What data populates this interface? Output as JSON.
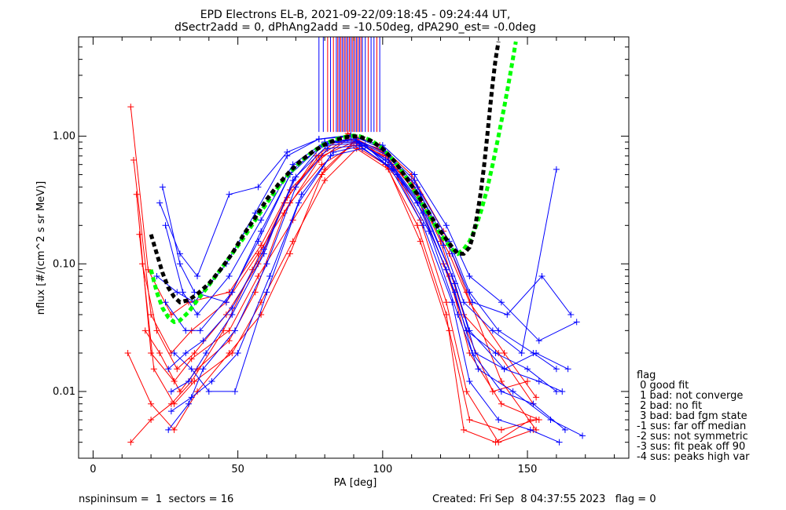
{
  "chart_data": {
    "type": "line",
    "title": "EPD Electrons EL-B, 2021-09-22/09:18:45 - 09:24:44 UT,",
    "subtitle": "dSectr2add = 0, dPhAng2add = -10.50deg, dPA290_est=  -0.0deg",
    "xlabel": "PA [deg]",
    "ylabel": "nflux [#/(cm^2 s sr MeV)]",
    "xlim": [
      -5,
      185
    ],
    "ylim": [
      0.003,
      6.0
    ],
    "yscale": "log",
    "x_ticks": [
      0,
      50,
      100,
      150
    ],
    "x_tick_labels": [
      "0",
      "50",
      "100",
      "150"
    ],
    "y_ticks": [
      0.01,
      0.1,
      1.0
    ],
    "y_tick_labels": [
      "0.01",
      "0.10",
      "1.00"
    ],
    "grid": false,
    "colors": {
      "red": "#ff0000",
      "blue": "#0000ff",
      "black": "#000000",
      "green": "#00ff00"
    },
    "series": [
      {
        "color": "red",
        "x": [
          13,
          19,
          27,
          33,
          47,
          58,
          68,
          79,
          90,
          101,
          112,
          123,
          130,
          142,
          153
        ],
        "y": [
          1.7,
          0.09,
          0.04,
          0.05,
          0.06,
          0.14,
          0.38,
          0.7,
          0.9,
          0.7,
          0.35,
          0.12,
          0.05,
          0.02,
          0.009
        ]
      },
      {
        "color": "red",
        "x": [
          14,
          20,
          27,
          34,
          46,
          57,
          68,
          79,
          90,
          101,
          112,
          123,
          130,
          141,
          154
        ],
        "y": [
          0.65,
          0.04,
          0.02,
          0.03,
          0.05,
          0.12,
          0.3,
          0.6,
          0.85,
          0.6,
          0.3,
          0.08,
          0.02,
          0.008,
          0.006
        ]
      },
      {
        "color": "red",
        "x": [
          15,
          20,
          28,
          34,
          47,
          57,
          69,
          80,
          91,
          102,
          113,
          122,
          129,
          140,
          152
        ],
        "y": [
          0.35,
          0.02,
          0.012,
          0.018,
          0.03,
          0.08,
          0.22,
          0.55,
          0.95,
          0.65,
          0.22,
          0.05,
          0.01,
          0.004,
          0.005
        ]
      },
      {
        "color": "red",
        "x": [
          16,
          21,
          28,
          35,
          48,
          58,
          69,
          80,
          91,
          102,
          113,
          123,
          130,
          141,
          153
        ],
        "y": [
          0.17,
          0.015,
          0.008,
          0.012,
          0.02,
          0.05,
          0.15,
          0.45,
          0.8,
          0.55,
          0.15,
          0.03,
          0.006,
          0.005,
          0.006
        ]
      },
      {
        "color": "red",
        "x": [
          12,
          20,
          28,
          36,
          47,
          58,
          68,
          79,
          90,
          101,
          112,
          122,
          128,
          139,
          151
        ],
        "y": [
          0.02,
          0.008,
          0.005,
          0.01,
          0.02,
          0.04,
          0.12,
          0.5,
          0.9,
          0.6,
          0.2,
          0.04,
          0.005,
          0.004,
          0.006
        ]
      },
      {
        "color": "red",
        "x": [
          17,
          22,
          29,
          35,
          46,
          57,
          67,
          78,
          89,
          100,
          111,
          121,
          129,
          138,
          150
        ],
        "y": [
          0.1,
          0.03,
          0.015,
          0.02,
          0.04,
          0.1,
          0.33,
          0.7,
          1.0,
          0.75,
          0.38,
          0.1,
          0.03,
          0.01,
          0.012
        ]
      },
      {
        "color": "red",
        "x": [
          18,
          23,
          30,
          36,
          47,
          56,
          66,
          78,
          88,
          99,
          110,
          120,
          128,
          140,
          152
        ],
        "y": [
          0.03,
          0.02,
          0.01,
          0.015,
          0.025,
          0.06,
          0.25,
          0.65,
          0.95,
          0.8,
          0.45,
          0.15,
          0.04,
          0.02,
          0.008
        ]
      },
      {
        "color": "red",
        "x": [
          13,
          20,
          27,
          34,
          45,
          55,
          66,
          77,
          88,
          99,
          110,
          121,
          129,
          141,
          153
        ],
        "y": [
          0.004,
          0.006,
          0.008,
          0.012,
          0.03,
          0.09,
          0.3,
          0.7,
          1.05,
          0.85,
          0.5,
          0.18,
          0.06,
          0.012,
          0.005
        ]
      },
      {
        "color": "blue",
        "x": [
          24,
          30,
          35,
          46,
          57,
          68,
          79,
          90,
          101,
          112,
          123,
          130,
          140,
          152,
          160
        ],
        "y": [
          0.4,
          0.1,
          0.06,
          0.05,
          0.15,
          0.5,
          0.85,
          0.95,
          0.75,
          0.4,
          0.15,
          0.06,
          0.03,
          0.02,
          0.015
        ]
      },
      {
        "color": "blue",
        "x": [
          25,
          31,
          36,
          47,
          58,
          69,
          80,
          91,
          102,
          113,
          124,
          131,
          143,
          155,
          165
        ],
        "y": [
          0.2,
          0.06,
          0.04,
          0.08,
          0.22,
          0.6,
          0.9,
          0.92,
          0.7,
          0.35,
          0.12,
          0.05,
          0.04,
          0.08,
          0.04
        ]
      },
      {
        "color": "blue",
        "x": [
          25,
          32,
          37,
          48,
          58,
          69,
          80,
          91,
          102,
          113,
          124,
          130,
          142,
          154,
          162
        ],
        "y": [
          0.05,
          0.03,
          0.03,
          0.06,
          0.18,
          0.55,
          0.88,
          0.9,
          0.65,
          0.3,
          0.08,
          0.03,
          0.015,
          0.012,
          0.01
        ]
      },
      {
        "color": "blue",
        "x": [
          26,
          32,
          38,
          48,
          59,
          70,
          81,
          92,
          103,
          114,
          125,
          131,
          141,
          152,
          163
        ],
        "y": [
          0.015,
          0.02,
          0.025,
          0.045,
          0.13,
          0.48,
          0.85,
          0.88,
          0.6,
          0.25,
          0.06,
          0.02,
          0.01,
          0.008,
          0.005
        ]
      },
      {
        "color": "blue",
        "x": [
          26,
          33,
          38,
          49,
          60,
          70,
          81,
          92,
          103,
          114,
          124,
          130,
          140,
          151,
          161
        ],
        "y": [
          0.005,
          0.008,
          0.015,
          0.03,
          0.1,
          0.4,
          0.8,
          0.85,
          0.55,
          0.2,
          0.05,
          0.012,
          0.006,
          0.005,
          0.004
        ]
      },
      {
        "color": "blue",
        "x": [
          27,
          33,
          39,
          48,
          59,
          69,
          80,
          90,
          101,
          112,
          122,
          129,
          139,
          150,
          160
        ],
        "y": [
          0.01,
          0.012,
          0.02,
          0.04,
          0.12,
          0.45,
          0.9,
          0.95,
          0.65,
          0.3,
          0.09,
          0.03,
          0.02,
          0.015,
          0.01
        ]
      },
      {
        "color": "blue",
        "x": [
          28,
          34,
          40,
          49,
          60,
          71,
          82,
          93,
          104,
          115,
          125,
          132,
          142,
          153,
          164
        ],
        "y": [
          0.02,
          0.015,
          0.01,
          0.01,
          0.06,
          0.3,
          0.7,
          0.8,
          0.55,
          0.25,
          0.07,
          0.02,
          0.015,
          0.02,
          0.015
        ]
      },
      {
        "color": "blue",
        "x": [
          23,
          30,
          36,
          47,
          57,
          67,
          78,
          89,
          100,
          111,
          122,
          130,
          141,
          154,
          167
        ],
        "y": [
          0.3,
          0.12,
          0.08,
          0.35,
          0.4,
          0.75,
          0.95,
          1.0,
          0.85,
          0.5,
          0.2,
          0.08,
          0.05,
          0.025,
          0.035
        ]
      },
      {
        "color": "blue",
        "x": [
          27,
          34,
          41,
          50,
          61,
          72,
          83,
          94,
          105,
          116,
          126,
          133,
          145,
          158,
          169
        ],
        "y": [
          0.007,
          0.009,
          0.012,
          0.02,
          0.08,
          0.35,
          0.75,
          0.85,
          0.5,
          0.18,
          0.04,
          0.015,
          0.01,
          0.006,
          0.0045
        ]
      },
      {
        "color": "blue",
        "x": [
          22,
          29,
          35,
          46,
          56,
          67,
          78,
          89,
          100,
          111,
          121,
          128,
          138,
          148,
          160
        ],
        "y": [
          0.08,
          0.06,
          0.05,
          0.1,
          0.25,
          0.7,
          0.95,
          1.02,
          0.8,
          0.45,
          0.14,
          0.05,
          0.03,
          0.02,
          0.55
        ]
      }
    ],
    "fit_black": {
      "x": [
        20,
        22,
        24,
        26,
        28,
        30,
        33,
        36,
        40,
        44,
        48,
        52,
        56,
        60,
        64,
        68,
        72,
        76,
        80,
        84,
        88,
        90,
        92,
        96,
        100,
        104,
        108,
        112,
        116,
        120,
        124,
        126,
        128,
        130,
        131,
        132,
        133,
        134,
        135,
        136,
        137,
        138,
        139,
        140
      ],
      "y": [
        0.17,
        0.12,
        0.085,
        0.065,
        0.055,
        0.05,
        0.052,
        0.058,
        0.07,
        0.09,
        0.12,
        0.17,
        0.23,
        0.32,
        0.42,
        0.53,
        0.65,
        0.76,
        0.86,
        0.94,
        0.99,
        1.0,
        0.99,
        0.92,
        0.8,
        0.64,
        0.48,
        0.35,
        0.25,
        0.18,
        0.135,
        0.12,
        0.12,
        0.135,
        0.16,
        0.2,
        0.27,
        0.38,
        0.58,
        0.95,
        1.6,
        2.6,
        4.0,
        5.5
      ]
    },
    "fit_green": {
      "x": [
        20,
        22,
        24,
        26,
        28,
        30,
        33,
        36,
        40,
        44,
        48,
        52,
        56,
        60,
        64,
        68,
        72,
        76,
        80,
        84,
        88,
        90,
        92,
        96,
        100,
        104,
        108,
        112,
        116,
        120,
        124,
        126,
        128,
        130,
        132,
        134,
        136,
        138,
        140,
        142,
        144,
        146
      ],
      "y": [
        0.09,
        0.06,
        0.045,
        0.038,
        0.035,
        0.036,
        0.042,
        0.052,
        0.068,
        0.09,
        0.12,
        0.16,
        0.22,
        0.3,
        0.4,
        0.52,
        0.64,
        0.76,
        0.87,
        0.95,
        1.0,
        1.01,
        1.0,
        0.93,
        0.8,
        0.64,
        0.48,
        0.34,
        0.24,
        0.17,
        0.13,
        0.12,
        0.13,
        0.15,
        0.19,
        0.26,
        0.38,
        0.6,
        1.0,
        1.7,
        3.0,
        5.5
      ]
    },
    "vlines": {
      "x": [
        78,
        79.5,
        81,
        82,
        83,
        84,
        84.5,
        85,
        85.5,
        86,
        86.5,
        87,
        87.5,
        88,
        88.5,
        89,
        89.5,
        90,
        90.5,
        91,
        91.5,
        92,
        92.5,
        93,
        94,
        95,
        96,
        97,
        98,
        99
      ],
      "colors": [
        "blue",
        "blue",
        "red",
        "blue",
        "red",
        "blue",
        "red",
        "blue",
        "red",
        "blue",
        "red",
        "blue",
        "red",
        "blue",
        "red",
        "blue",
        "red",
        "blue",
        "red",
        "blue",
        "red",
        "blue",
        "red",
        "blue",
        "blue",
        "red",
        "blue",
        "blue",
        "red",
        "blue"
      ],
      "y_from": 1.08,
      "y_to": 6.0
    }
  },
  "legend": {
    "title": "flag",
    "items": [
      " 0 good fit",
      " 1 bad: not converge",
      " 2 bad: no fit",
      " 3 bad: bad fgm state",
      "-1 sus: far off median",
      "-2 sus: not symmetric",
      "-3 sus: fit peak off 90",
      "-4 sus: peaks high var"
    ]
  },
  "footer": {
    "left": "nspininsum =  1  sectors = 16",
    "right": "Created: Fri Sep  8 04:37:55 2023   flag = 0"
  }
}
